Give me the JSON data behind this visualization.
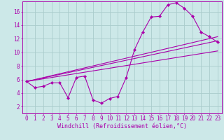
{
  "background_color": "#cce8e8",
  "grid_color": "#aacccc",
  "line_color": "#aa00aa",
  "marker_color": "#aa00aa",
  "xlabel": "Windchill (Refroidissement éolien,°C)",
  "xlabel_fontsize": 6.0,
  "tick_fontsize": 5.5,
  "xlim": [
    -0.5,
    23.5
  ],
  "ylim": [
    1.0,
    17.5
  ],
  "yticks": [
    2,
    4,
    6,
    8,
    10,
    12,
    14,
    16
  ],
  "xticks": [
    0,
    1,
    2,
    3,
    4,
    5,
    6,
    7,
    8,
    9,
    10,
    11,
    12,
    13,
    14,
    15,
    16,
    17,
    18,
    19,
    20,
    21,
    22,
    23
  ],
  "series_main": {
    "x": [
      0,
      1,
      2,
      3,
      4,
      5,
      6,
      7,
      8,
      9,
      10,
      11,
      12,
      13,
      14,
      15,
      16,
      17,
      18,
      19,
      20,
      21,
      22,
      23
    ],
    "y": [
      5.7,
      4.8,
      5.0,
      5.5,
      5.5,
      3.3,
      6.3,
      6.5,
      3.0,
      2.5,
      3.2,
      3.5,
      6.3,
      10.4,
      13.0,
      15.2,
      15.3,
      17.0,
      17.3,
      16.5,
      15.3,
      13.0,
      12.3,
      11.5
    ]
  },
  "series_lines": [
    {
      "x": [
        0,
        23
      ],
      "y": [
        5.7,
        12.3
      ]
    },
    {
      "x": [
        0,
        23
      ],
      "y": [
        5.7,
        11.7
      ]
    },
    {
      "x": [
        0,
        23
      ],
      "y": [
        5.7,
        10.2
      ]
    }
  ]
}
